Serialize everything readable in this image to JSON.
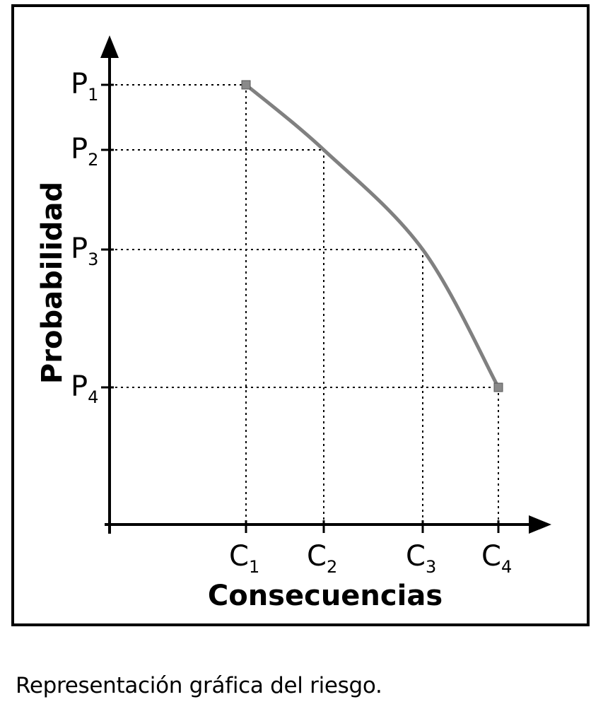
{
  "caption": "Representación gráfica del riesgo.",
  "chart_data": {
    "type": "line",
    "xlabel": "Consecuencias",
    "ylabel": "Probabilidad",
    "x_ticks": [
      {
        "label": "C",
        "sub": "1",
        "value": 1
      },
      {
        "label": "C",
        "sub": "2",
        "value": 2
      },
      {
        "label": "C",
        "sub": "3",
        "value": 3
      },
      {
        "label": "C",
        "sub": "4",
        "value": 4
      }
    ],
    "y_ticks": [
      {
        "label": "P",
        "sub": "1",
        "value": 1
      },
      {
        "label": "P",
        "sub": "2",
        "value": 2
      },
      {
        "label": "P",
        "sub": "3",
        "value": 3
      },
      {
        "label": "P",
        "sub": "4",
        "value": 4
      }
    ],
    "series": [
      {
        "points": [
          {
            "x": "C1",
            "y": "P1"
          },
          {
            "x": "C2",
            "y": "P2"
          },
          {
            "x": "C3",
            "y": "P3"
          },
          {
            "x": "C4",
            "y": "P4"
          }
        ]
      }
    ],
    "grid": "dotted guide lines from each point to both axes",
    "line_color": "#808080"
  }
}
